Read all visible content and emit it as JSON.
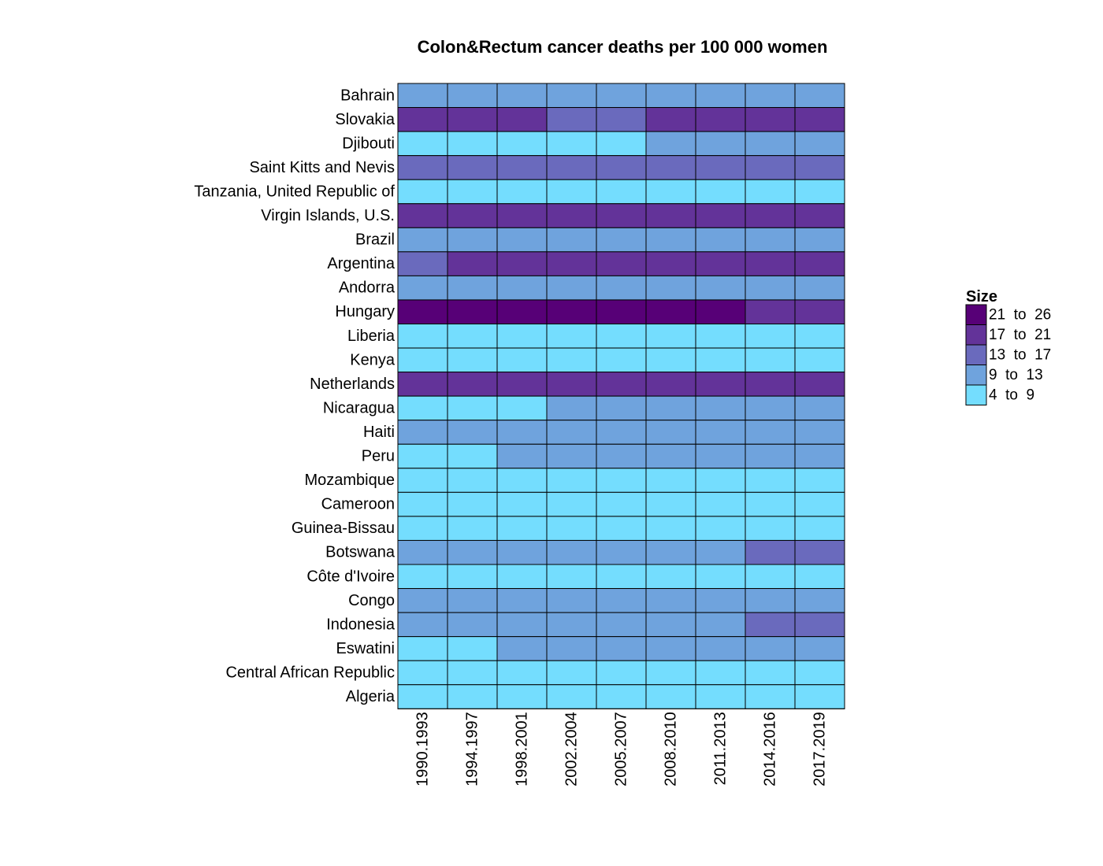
{
  "chart_data": {
    "type": "heatmap",
    "title": "Colon&Rectum cancer deaths per 100 000 women",
    "xlabel": "",
    "ylabel": "",
    "categories": [
      "1990.1993",
      "1994.1997",
      "1998.2001",
      "2002.2004",
      "2005.2007",
      "2008.2010",
      "2011.2013",
      "2014.2016",
      "2017.2019"
    ],
    "rows": [
      "Bahrain",
      "Slovakia",
      "Djibouti",
      "Saint Kitts and Nevis",
      "Tanzania, United Republic of",
      "Virgin Islands, U.S.",
      "Brazil",
      "Argentina",
      "Andorra",
      "Hungary",
      "Liberia",
      "Kenya",
      "Netherlands",
      "Nicaragua",
      "Haiti",
      "Peru",
      "Mozambique",
      "Cameroon",
      "Guinea-Bissau",
      "Botswana",
      "Côte d'Ivoire",
      "Congo",
      "Indonesia",
      "Eswatini",
      "Central African Republic",
      "Algeria"
    ],
    "legend": {
      "title": "Size",
      "position": "right",
      "bins": [
        {
          "label": "21  to  26",
          "color": "#570077"
        },
        {
          "label": "17  to  21",
          "color": "#633399"
        },
        {
          "label": "13  to  17",
          "color": "#6a6abd"
        },
        {
          "label": "9  to  13",
          "color": "#6fa3dd"
        },
        {
          "label": "4  to  9",
          "color": "#74ddfe"
        }
      ]
    },
    "bin_index": [
      [
        3,
        3,
        3,
        3,
        3,
        3,
        3,
        3,
        3
      ],
      [
        1,
        1,
        1,
        2,
        2,
        1,
        1,
        1,
        1
      ],
      [
        4,
        4,
        4,
        4,
        4,
        3,
        3,
        3,
        3
      ],
      [
        2,
        2,
        2,
        2,
        2,
        2,
        2,
        2,
        2
      ],
      [
        4,
        4,
        4,
        4,
        4,
        4,
        4,
        4,
        4
      ],
      [
        1,
        1,
        1,
        1,
        1,
        1,
        1,
        1,
        1
      ],
      [
        3,
        3,
        3,
        3,
        3,
        3,
        3,
        3,
        3
      ],
      [
        2,
        1,
        1,
        1,
        1,
        1,
        1,
        1,
        1
      ],
      [
        3,
        3,
        3,
        3,
        3,
        3,
        3,
        3,
        3
      ],
      [
        0,
        0,
        0,
        0,
        0,
        0,
        0,
        1,
        1
      ],
      [
        4,
        4,
        4,
        4,
        4,
        4,
        4,
        4,
        4
      ],
      [
        4,
        4,
        4,
        4,
        4,
        4,
        4,
        4,
        4
      ],
      [
        1,
        1,
        1,
        1,
        1,
        1,
        1,
        1,
        1
      ],
      [
        4,
        4,
        4,
        3,
        3,
        3,
        3,
        3,
        3
      ],
      [
        3,
        3,
        3,
        3,
        3,
        3,
        3,
        3,
        3
      ],
      [
        4,
        4,
        3,
        3,
        3,
        3,
        3,
        3,
        3
      ],
      [
        4,
        4,
        4,
        4,
        4,
        4,
        4,
        4,
        4
      ],
      [
        4,
        4,
        4,
        4,
        4,
        4,
        4,
        4,
        4
      ],
      [
        4,
        4,
        4,
        4,
        4,
        4,
        4,
        4,
        4
      ],
      [
        3,
        3,
        3,
        3,
        3,
        3,
        3,
        2,
        2
      ],
      [
        4,
        4,
        4,
        4,
        4,
        4,
        4,
        4,
        4
      ],
      [
        3,
        3,
        3,
        3,
        3,
        3,
        3,
        3,
        3
      ],
      [
        3,
        3,
        3,
        3,
        3,
        3,
        3,
        2,
        2
      ],
      [
        4,
        4,
        3,
        3,
        3,
        3,
        3,
        3,
        3
      ],
      [
        4,
        4,
        4,
        4,
        4,
        4,
        4,
        4,
        4
      ],
      [
        4,
        4,
        4,
        4,
        4,
        4,
        4,
        4,
        4
      ]
    ]
  }
}
